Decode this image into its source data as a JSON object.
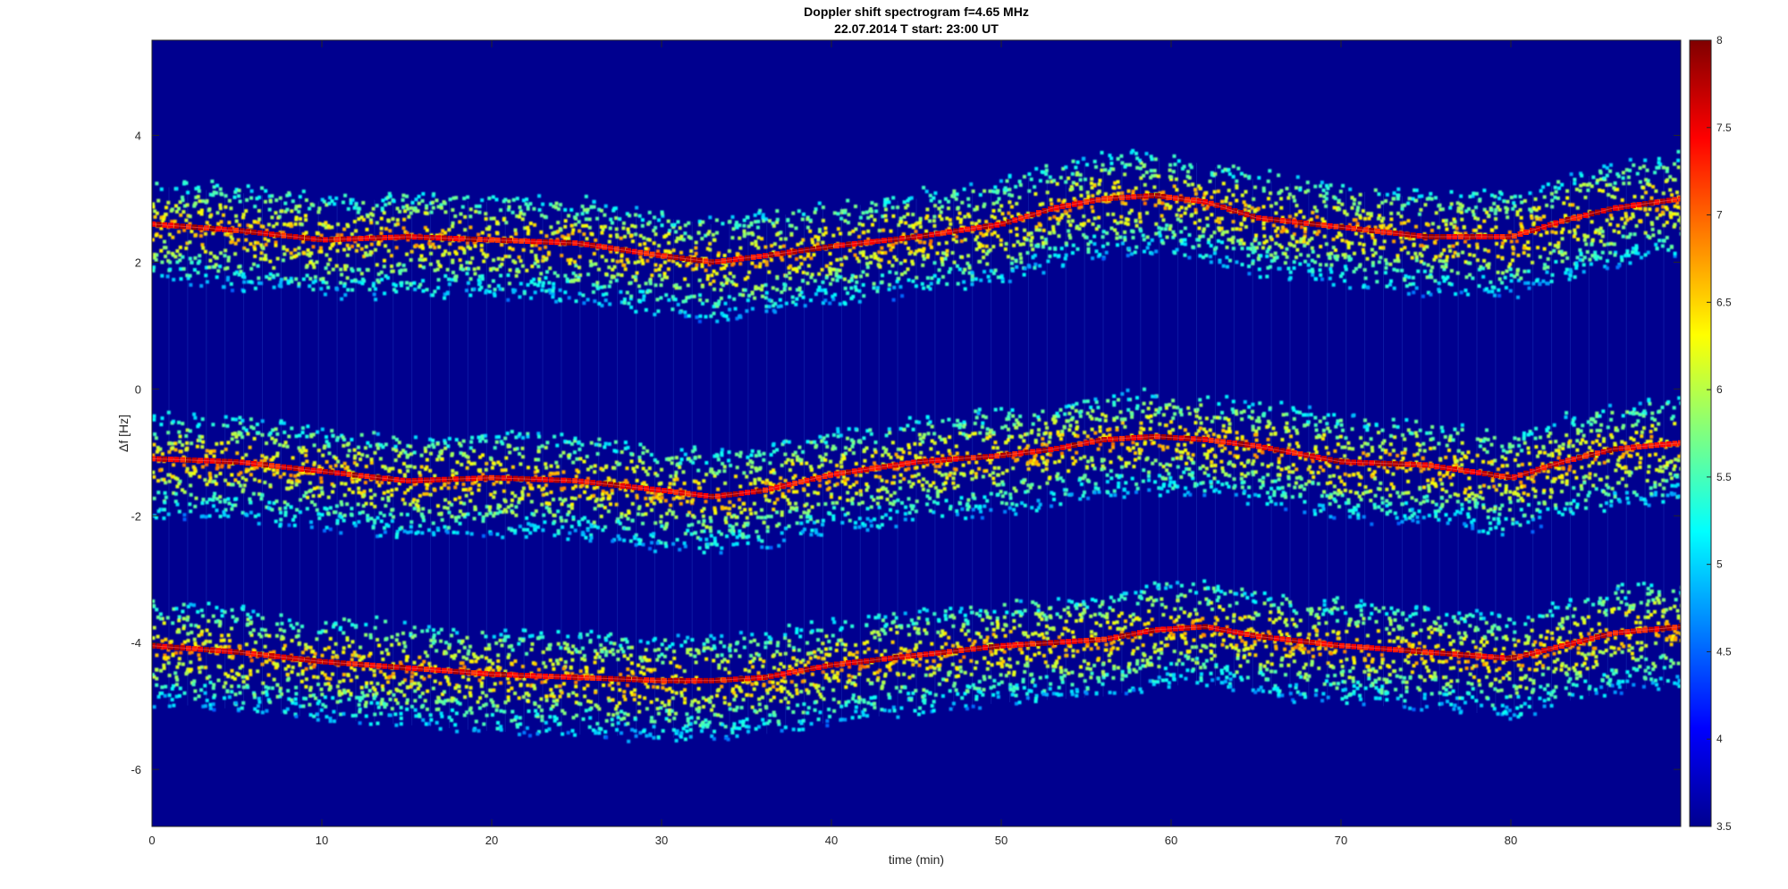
{
  "chart_data": {
    "type": "heatmap",
    "title": "Doppler shift spectrogram f=4.65 MHz",
    "subtitle": "22.07.2014   T start: 23:00 UT",
    "xlabel": "time (min)",
    "ylabel": "Δf [Hz]",
    "xlim": [
      0,
      90
    ],
    "ylim": [
      -6.9,
      5.5
    ],
    "xticks": [
      0,
      10,
      20,
      30,
      40,
      50,
      60,
      70,
      80
    ],
    "yticks": [
      -6,
      -4,
      -2,
      0,
      2,
      4
    ],
    "colorbar": {
      "colormap": "jet",
      "range": [
        3.5,
        8
      ],
      "ticks": [
        3.5,
        4,
        4.5,
        5,
        5.5,
        6,
        6.5,
        7,
        7.5,
        8
      ]
    },
    "background_color": "#00008f",
    "traces": [
      {
        "time": [
          0,
          5,
          10,
          15,
          20,
          25,
          30,
          33,
          36,
          40,
          45,
          50,
          53,
          56,
          59,
          62,
          65,
          70,
          75,
          80,
          83,
          86,
          90
        ],
        "df": [
          2.6,
          2.5,
          2.35,
          2.4,
          2.35,
          2.3,
          2.1,
          2.0,
          2.1,
          2.25,
          2.4,
          2.6,
          2.85,
          3.0,
          3.05,
          2.95,
          2.7,
          2.55,
          2.4,
          2.4,
          2.65,
          2.85,
          3.0
        ]
      },
      {
        "time": [
          0,
          5,
          10,
          15,
          20,
          25,
          30,
          33,
          36,
          40,
          45,
          50,
          53,
          56,
          59,
          62,
          65,
          70,
          75,
          80,
          83,
          86,
          90
        ],
        "df": [
          -1.1,
          -1.15,
          -1.3,
          -1.45,
          -1.4,
          -1.45,
          -1.6,
          -1.7,
          -1.6,
          -1.35,
          -1.15,
          -1.05,
          -0.95,
          -0.8,
          -0.75,
          -0.8,
          -0.9,
          -1.15,
          -1.2,
          -1.4,
          -1.15,
          -0.95,
          -0.85
        ]
      },
      {
        "time": [
          0,
          5,
          10,
          15,
          20,
          25,
          30,
          33,
          36,
          40,
          45,
          50,
          53,
          56,
          59,
          62,
          65,
          70,
          75,
          80,
          83,
          86,
          90
        ],
        "df": [
          -4.05,
          -4.15,
          -4.3,
          -4.4,
          -4.5,
          -4.55,
          -4.6,
          -4.6,
          -4.55,
          -4.35,
          -4.2,
          -4.05,
          -4.0,
          -3.95,
          -3.8,
          -3.75,
          -3.9,
          -4.05,
          -4.15,
          -4.25,
          -4.05,
          -3.85,
          -3.75
        ]
      }
    ]
  }
}
